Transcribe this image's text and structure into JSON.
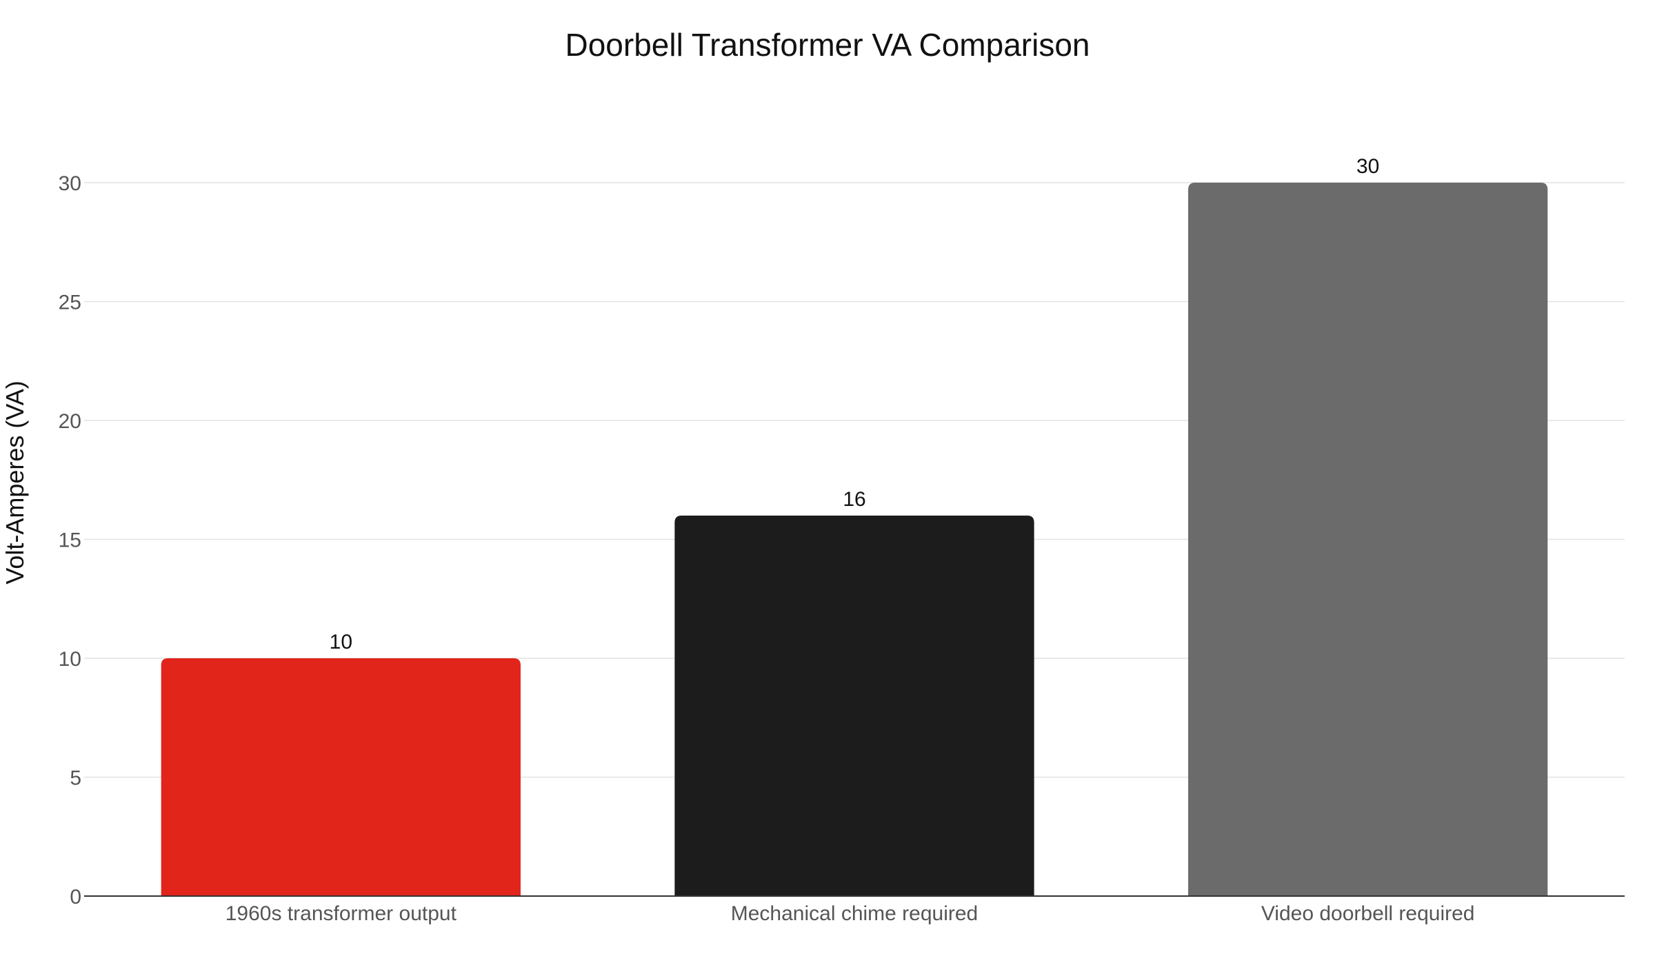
{
  "chart_data": {
    "type": "bar",
    "title": "Doorbell Transformer VA Comparison",
    "xlabel": "",
    "ylabel": "Volt-Amperes (VA)",
    "categories": [
      "1960s transformer output",
      "Mechanical chime required",
      "Video doorbell required"
    ],
    "values": [
      10,
      16,
      30
    ],
    "colors": [
      "#e1251b",
      "#1c1c1c",
      "#6b6b6b"
    ],
    "ylim": [
      0,
      30
    ],
    "yticks": [
      0,
      5,
      10,
      15,
      20,
      25,
      30
    ],
    "grid": true,
    "legend": "none",
    "data_labels": true
  }
}
